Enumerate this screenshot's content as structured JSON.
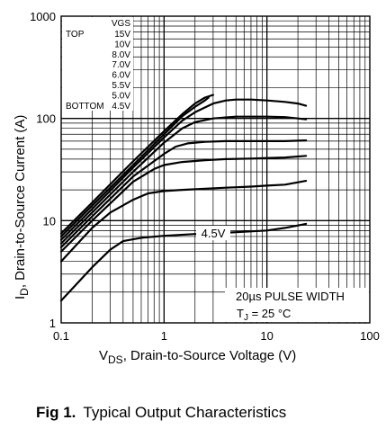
{
  "caption": {
    "figure_number": "Fig 1.",
    "text": "Typical Output Characteristics"
  },
  "chart_data": {
    "type": "line",
    "title": "",
    "xlabel_main": "V",
    "xlabel_sub": "DS",
    "xlabel_rest": ", Drain-to-Source Voltage (V)",
    "ylabel_main": "I",
    "ylabel_sub": "D",
    "ylabel_rest": ", Drain-to-Source Current (A)",
    "x_scale": "log",
    "y_scale": "log",
    "xlim": [
      0.1,
      100
    ],
    "ylim": [
      1,
      1000
    ],
    "grid": true,
    "x_ticks": [
      {
        "value": 0.1,
        "label": "0.1"
      },
      {
        "value": 1,
        "label": "1"
      },
      {
        "value": 10,
        "label": "10"
      },
      {
        "value": 100,
        "label": "100"
      }
    ],
    "y_ticks": [
      {
        "value": 1,
        "label": "1"
      },
      {
        "value": 10,
        "label": "10"
      },
      {
        "value": 100,
        "label": "100"
      },
      {
        "value": 1000,
        "label": "1000"
      }
    ],
    "legend": {
      "placement": "top-left",
      "header": "VGS",
      "top_label": "TOP",
      "bottom_label": "BOTTOM",
      "entries": [
        "15V",
        "10V",
        "8.0V",
        "7.0V",
        "6.0V",
        "5.5V",
        "5.0V",
        "4.5V"
      ]
    },
    "annotations": {
      "curve_label": "4.5V",
      "pulse_width": "20µs PULSE WIDTH",
      "tj_main": "T",
      "tj_sub": "J",
      "tj_rest": " = 25 °C"
    },
    "series": [
      {
        "name": "15V",
        "x": [
          0.1,
          0.2,
          0.5,
          1.0,
          1.5,
          2.0,
          2.5,
          3.0
        ],
        "y": [
          7.5,
          15,
          38,
          75,
          110,
          140,
          160,
          170
        ]
      },
      {
        "name": "10V",
        "x": [
          0.1,
          0.2,
          0.5,
          1.0,
          1.5,
          2.0,
          2.5,
          2.7
        ],
        "y": [
          7.0,
          14,
          35,
          70,
          105,
          130,
          150,
          160
        ]
      },
      {
        "name": "8.0V",
        "x": [
          0.1,
          0.2,
          0.5,
          1.0,
          1.5,
          2.0,
          3.0,
          4.0,
          5.0,
          7.0,
          10,
          15,
          20,
          24
        ],
        "y": [
          6.5,
          13,
          33,
          65,
          95,
          115,
          140,
          150,
          153,
          153,
          150,
          145,
          140,
          133
        ]
      },
      {
        "name": "7.0V",
        "x": [
          0.1,
          0.2,
          0.5,
          1.0,
          1.5,
          2.0,
          3.0,
          5.0,
          10,
          15,
          20,
          24
        ],
        "y": [
          6.0,
          12,
          30,
          58,
          80,
          92,
          100,
          104,
          104,
          103,
          100,
          98
        ]
      },
      {
        "name": "6.0V",
        "x": [
          0.1,
          0.2,
          0.5,
          1.0,
          1.3,
          1.7,
          2.5,
          4.0,
          7.0,
          10,
          15,
          24
        ],
        "y": [
          5.5,
          11,
          27,
          45,
          53,
          57,
          59,
          60,
          60,
          60,
          60,
          61
        ]
      },
      {
        "name": "5.5V",
        "x": [
          0.1,
          0.2,
          0.5,
          0.8,
          1.0,
          1.5,
          2.5,
          4.0,
          7.0,
          10,
          15,
          24
        ],
        "y": [
          5.0,
          10,
          24,
          32,
          35,
          37.5,
          39,
          40,
          40.5,
          41,
          41.5,
          43
        ]
      },
      {
        "name": "5.0V",
        "x": [
          0.1,
          0.2,
          0.3,
          0.5,
          0.7,
          1.0,
          1.5,
          2.5,
          4.0,
          7.0,
          10,
          15,
          24
        ],
        "y": [
          4.0,
          8.5,
          12,
          16,
          18.5,
          19.5,
          20,
          20.5,
          21,
          21.5,
          22,
          22.5,
          24.5
        ]
      },
      {
        "name": "4.5V",
        "x": [
          0.1,
          0.2,
          0.3,
          0.4,
          0.6,
          1.0,
          2.0,
          3.0,
          5.0,
          10,
          15,
          24
        ],
        "y": [
          1.65,
          3.5,
          5.2,
          6.3,
          6.8,
          7.1,
          7.4,
          7.5,
          7.7,
          8.0,
          8.5,
          9.3
        ]
      }
    ]
  }
}
